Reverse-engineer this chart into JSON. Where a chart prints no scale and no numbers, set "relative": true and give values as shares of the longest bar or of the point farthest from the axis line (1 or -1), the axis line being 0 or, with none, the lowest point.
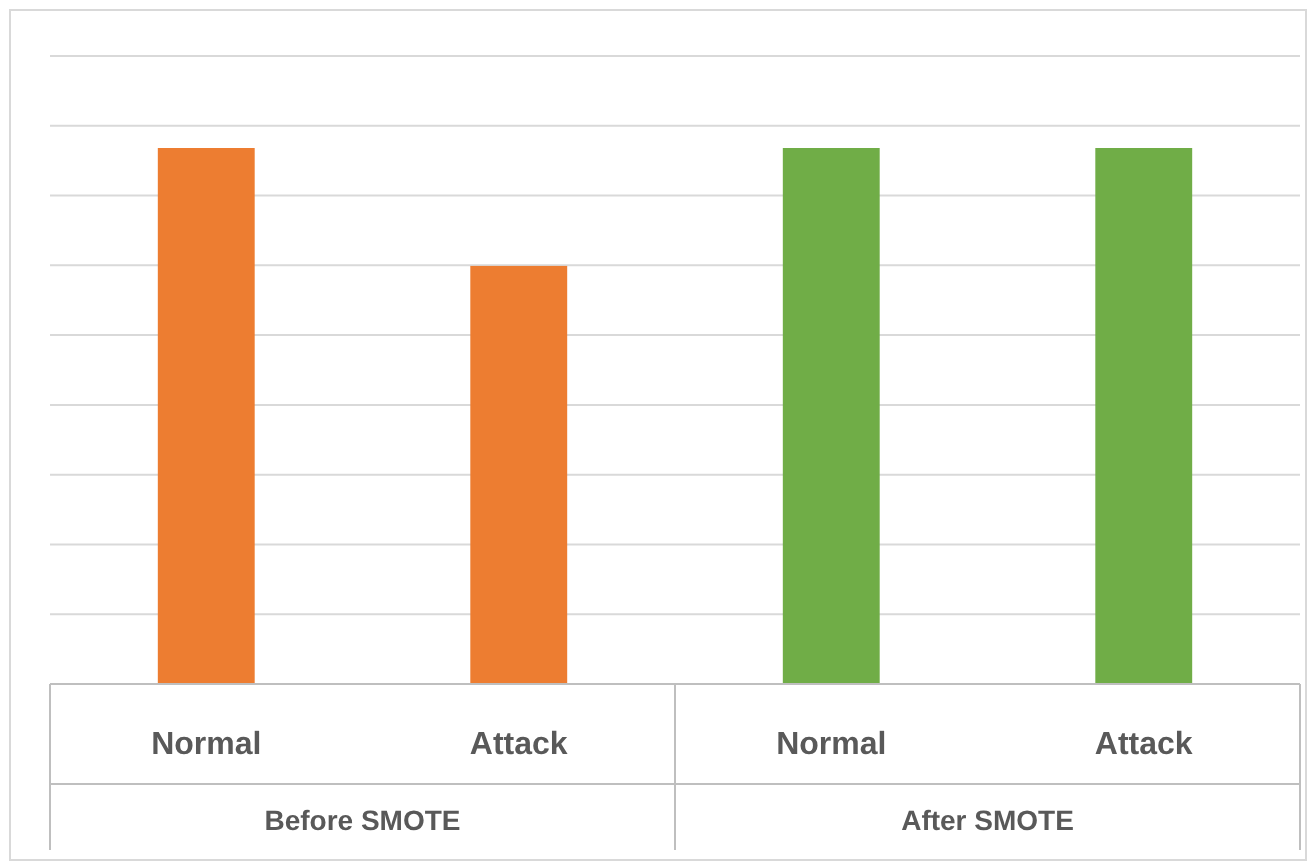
{
  "chart_data": {
    "type": "bar",
    "relative": true,
    "categories": [
      "Normal",
      "Attack",
      "Normal",
      "Attack"
    ],
    "values": [
      1,
      0.78,
      1,
      1
    ],
    "colors": [
      "#ed7d31",
      "#ed7d31",
      "#70ad47",
      "#70ad47"
    ],
    "annotations": [
      "Before SMOTE",
      "After SMOTE"
    ],
    "grid": true
  }
}
